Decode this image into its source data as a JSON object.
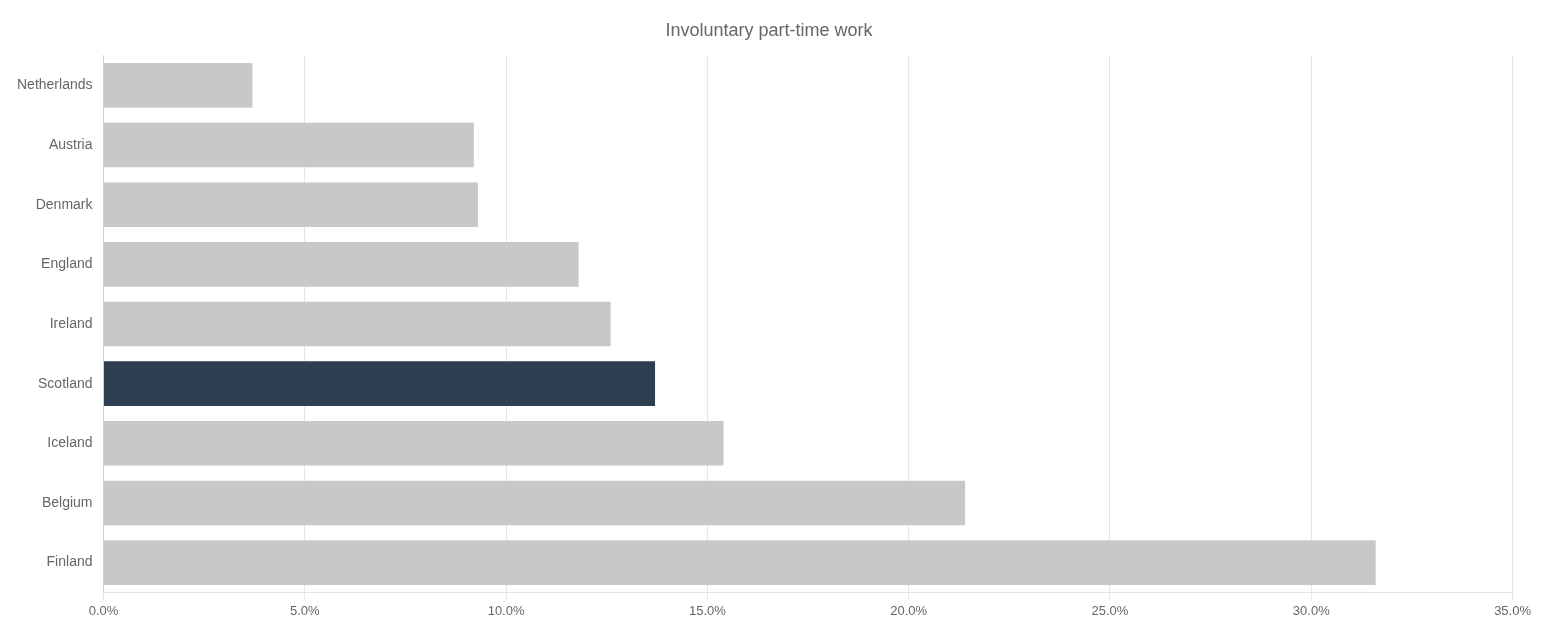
{
  "chart_data": {
    "type": "bar",
    "orientation": "horizontal",
    "title": "Involuntary part-time work",
    "categories": [
      "Netherlands",
      "Austria",
      "Denmark",
      "England",
      "Ireland",
      "Scotland",
      "Iceland",
      "Belgium",
      "Finland"
    ],
    "values": [
      3.7,
      9.2,
      9.3,
      11.8,
      12.6,
      13.7,
      15.4,
      21.4,
      31.6
    ],
    "colors": [
      "#c8c8c8",
      "#c8c8c8",
      "#c8c8c8",
      "#c8c8c8",
      "#c8c8c8",
      "#2e3f52",
      "#c8c8c8",
      "#c8c8c8",
      "#c8c8c8"
    ],
    "xlim": [
      0,
      35
    ],
    "xticks": [
      {
        "value": 0,
        "label": "0.0%"
      },
      {
        "value": 5,
        "label": "5.0%"
      },
      {
        "value": 10,
        "label": "10.0%"
      },
      {
        "value": 15,
        "label": "15.0%"
      },
      {
        "value": 20,
        "label": "20.0%"
      },
      {
        "value": 25,
        "label": "25.0%"
      },
      {
        "value": 30,
        "label": "30.0%"
      },
      {
        "value": 35,
        "label": "35.0%"
      }
    ],
    "grid": true
  }
}
